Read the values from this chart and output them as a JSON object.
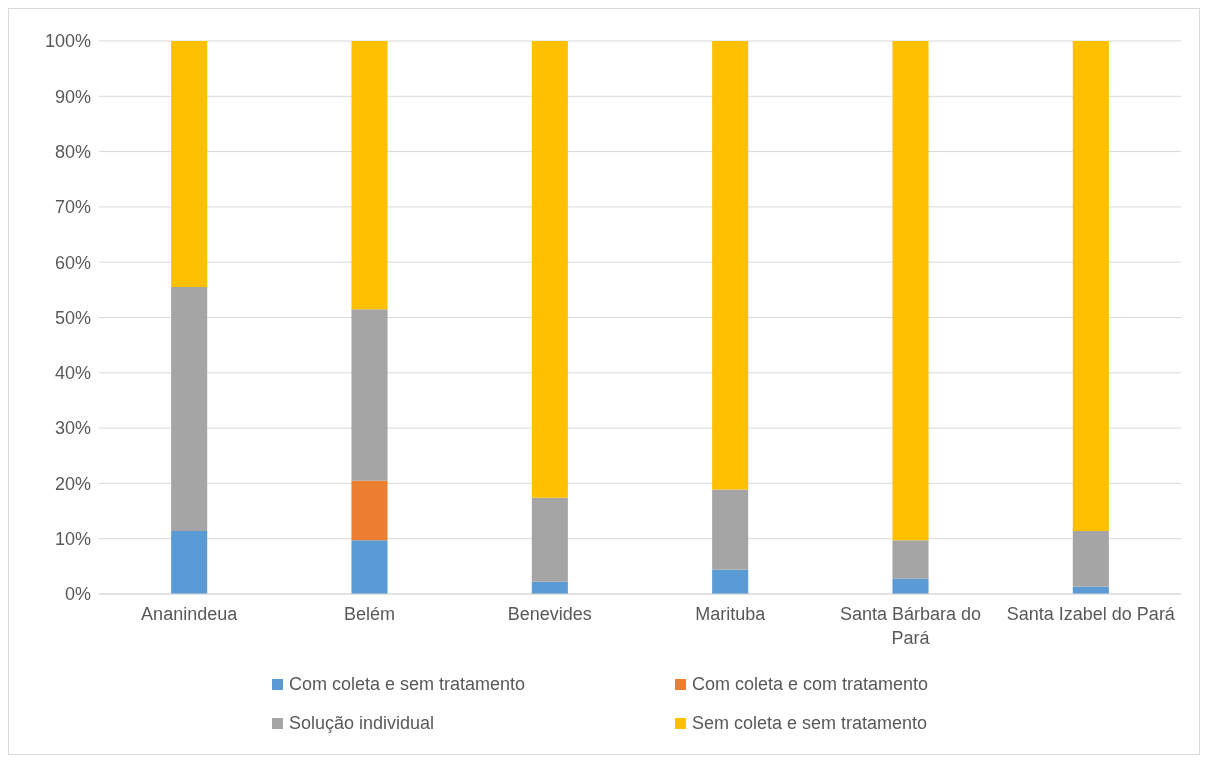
{
  "chart_data": {
    "type": "bar",
    "stacked": true,
    "categories": [
      "Ananindeua",
      "Belém",
      "Benevides",
      "Marituba",
      "Santa Bárbara do Pará",
      "Santa Izabel do Pará"
    ],
    "series": [
      {
        "name": "Com coleta e sem tratamento",
        "color": "#5b9bd5",
        "values": [
          11.4,
          9.7,
          2.2,
          4.4,
          2.8,
          1.3
        ]
      },
      {
        "name": "Com coleta e com tratamento",
        "color": "#ed7d31",
        "values": [
          0,
          10.8,
          0,
          0,
          0,
          0
        ]
      },
      {
        "name": "Solução individual",
        "color": "#a5a5a5",
        "values": [
          44.1,
          31.0,
          15.2,
          14.5,
          6.9,
          10.1
        ]
      },
      {
        "name": "Sem coleta e sem tratamento",
        "color": "#ffc000",
        "values": [
          44.5,
          48.5,
          82.6,
          81.1,
          90.3,
          88.6
        ]
      }
    ],
    "ylim": [
      0,
      100
    ],
    "yticks": [
      {
        "value": 0,
        "label": "0%"
      },
      {
        "value": 10,
        "label": "10%"
      },
      {
        "value": 20,
        "label": "20%"
      },
      {
        "value": 30,
        "label": "30%"
      },
      {
        "value": 40,
        "label": "40%"
      },
      {
        "value": 50,
        "label": "50%"
      },
      {
        "value": 60,
        "label": "60%"
      },
      {
        "value": 70,
        "label": "70%"
      },
      {
        "value": 80,
        "label": "80%"
      },
      {
        "value": 90,
        "label": "90%"
      },
      {
        "value": 100,
        "label": "100%"
      }
    ],
    "grid": "y",
    "legend": "bottom"
  }
}
